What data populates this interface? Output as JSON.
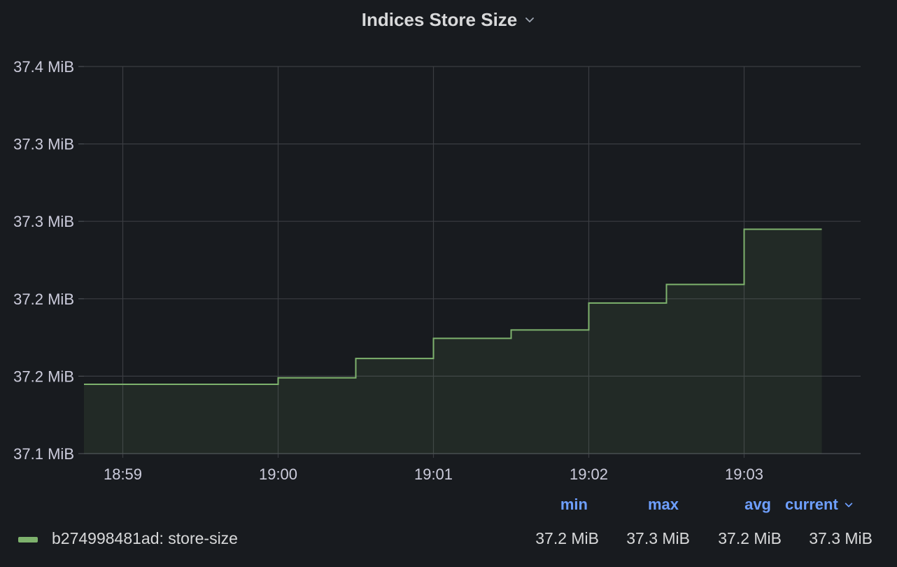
{
  "panel": {
    "title": "Indices Store Size"
  },
  "chart_data": {
    "type": "area",
    "title": "Indices Store Size",
    "step": true,
    "x_ticks": [
      "18:59",
      "19:00",
      "19:01",
      "19:02",
      "19:03"
    ],
    "x_range": [
      "18:58:45",
      "19:03:45"
    ],
    "y_ticks": [
      "37.1 MiB",
      "37.2 MiB",
      "37.2 MiB",
      "37.3 MiB",
      "37.3 MiB",
      "37.4 MiB"
    ],
    "y_range_mib": [
      37.1,
      37.4
    ],
    "grid": true,
    "series": [
      {
        "name": "b274998481ad: store-size",
        "color": "#7eb26d",
        "points": [
          [
            "18:58:45",
            37.1537
          ],
          [
            "19:00:00",
            37.1587
          ],
          [
            "19:00:30",
            37.1737
          ],
          [
            "19:01:00",
            37.1893
          ],
          [
            "19:01:30",
            37.1958
          ],
          [
            "19:02:00",
            37.2167
          ],
          [
            "19:02:30",
            37.2311
          ],
          [
            "19:03:00",
            37.2739
          ],
          [
            "19:03:30",
            37.2739
          ]
        ]
      }
    ],
    "legend": {
      "placement": "bottom",
      "headers": [
        "min",
        "max",
        "avg",
        "current"
      ],
      "rows": [
        {
          "name": "b274998481ad: store-size",
          "min": "37.2 MiB",
          "max": "37.3 MiB",
          "avg": "37.2 MiB",
          "current": "37.3 MiB"
        }
      ]
    }
  }
}
